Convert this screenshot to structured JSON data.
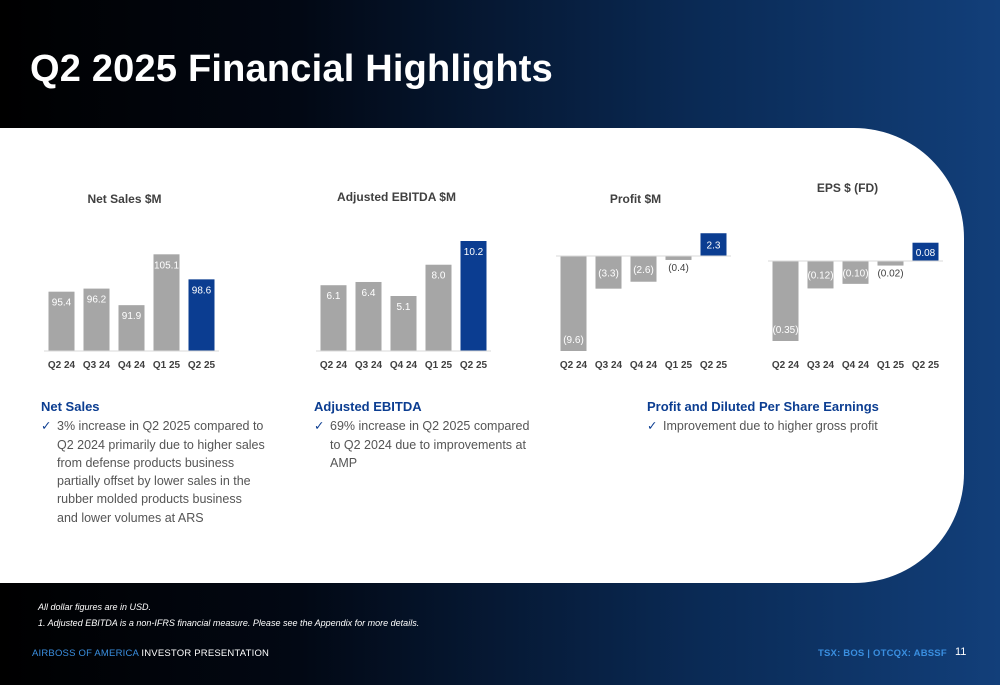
{
  "title": "Q2 2025 Financial Highlights",
  "colors": {
    "gray_bar": "#a6a6a6",
    "highlight_bar": "#0b3d91",
    "text_dark": "#404040",
    "accent": "#0b3d91"
  },
  "chart_data": [
    {
      "type": "bar",
      "title": "Net Sales $M",
      "categories": [
        "Q2 24",
        "Q3 24",
        "Q4 24",
        "Q1 25",
        "Q2 25"
      ],
      "values": [
        95.4,
        96.2,
        91.9,
        105.1,
        98.6
      ],
      "labels": [
        "95.4",
        "96.2",
        "91.9",
        "105.1",
        "98.6"
      ],
      "highlight_index": 4,
      "ylim": [
        80,
        107
      ]
    },
    {
      "type": "bar",
      "title": "Adjusted EBITDA $M",
      "categories": [
        "Q2 24",
        "Q3 24",
        "Q4 24",
        "Q1 25",
        "Q2 25"
      ],
      "values": [
        6.1,
        6.4,
        5.1,
        8.0,
        10.2
      ],
      "labels": [
        "6.1",
        "6.4",
        "5.1",
        "8.0",
        "10.2"
      ],
      "highlight_index": 4,
      "ylim": [
        0,
        10.2
      ]
    },
    {
      "type": "bar",
      "title": "Profit $M",
      "categories": [
        "Q2 24",
        "Q3 24",
        "Q4 24",
        "Q1 25",
        "Q2 25"
      ],
      "values": [
        -9.6,
        -3.3,
        -2.6,
        -0.4,
        2.3
      ],
      "labels": [
        "(9.6)",
        "(3.3)",
        "(2.6)",
        "(0.4)",
        "2.3"
      ],
      "highlight_index": 4,
      "ylim": [
        -9.6,
        2.3
      ]
    },
    {
      "type": "bar",
      "title": "EPS $ (FD)",
      "categories": [
        "Q2 24",
        "Q3 24",
        "Q4 24",
        "Q1 25",
        "Q2 25"
      ],
      "values": [
        -0.35,
        -0.12,
        -0.1,
        -0.02,
        0.08
      ],
      "labels": [
        "(0.35)",
        "(0.12)",
        "(0.10)",
        "(0.02)",
        "0.08"
      ],
      "highlight_index": 4,
      "ylim": [
        -0.35,
        0.08
      ]
    }
  ],
  "sections": {
    "net_sales": {
      "heading": "Net Sales",
      "bullet": "3% increase in Q2 2025 compared to Q2 2024 primarily due to higher sales from defense products business partially offset by lower sales in the rubber molded products business and lower volumes at ARS"
    },
    "ebitda": {
      "heading": "Adjusted EBITDA",
      "bullet": "69% increase in Q2 2025 compared to Q2 2024 due to improvements at AMP"
    },
    "profit": {
      "heading": "Profit and Diluted Per Share Earnings",
      "bullet": "Improvement due to higher gross profit"
    }
  },
  "footnotes": {
    "line1": "All dollar figures are in USD.",
    "line2": "1. Adjusted EBITDA is a non-IFRS financial measure. Please see the Appendix for more details."
  },
  "footer": {
    "brand": "AIRBOSS OF AMERICA",
    "presentation": " INVESTOR PRESENTATION",
    "tickers": "TSX: BOS   |  OTCQX: ABSSF",
    "page": "11"
  }
}
